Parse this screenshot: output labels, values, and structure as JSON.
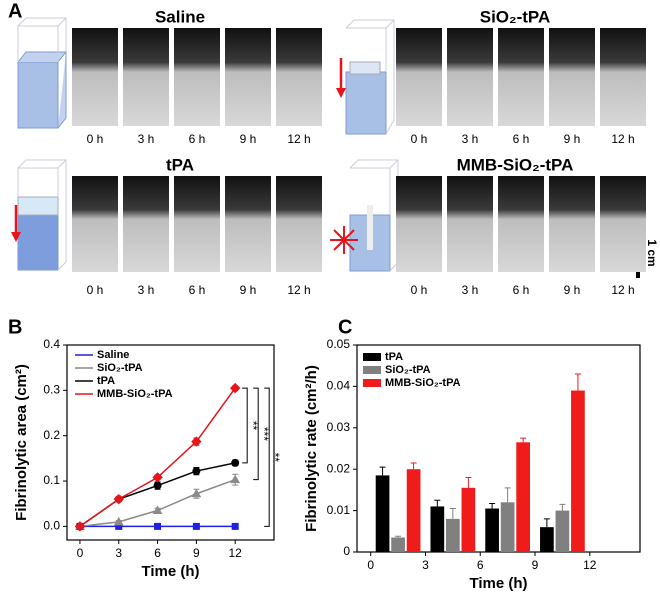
{
  "panel_a": {
    "label": "A",
    "groups": [
      {
        "title": "Saline",
        "times": [
          "0 h",
          "3 h",
          "6 h",
          "9 h",
          "12 h"
        ]
      },
      {
        "title": "SiO₂-tPA",
        "times": [
          "0 h",
          "3 h",
          "6 h",
          "9 h",
          "12 h"
        ]
      },
      {
        "title": "tPA",
        "times": [
          "0 h",
          "3 h",
          "6 h",
          "9 h",
          "12 h"
        ]
      },
      {
        "title": "MMB-SiO₂-tPA",
        "times": [
          "0 h",
          "3 h",
          "6 h",
          "9 h",
          "12 h"
        ]
      }
    ],
    "scale_bar": "1 cm"
  },
  "chart_data": [
    {
      "type": "line",
      "label": "B",
      "x_label": "Time (h)",
      "y_label": "Fibrinolytic area (cm²)",
      "x": [
        0,
        3,
        6,
        9,
        12
      ],
      "xlim": [
        -1,
        15
      ],
      "xticks": [
        0,
        3,
        6,
        9,
        12
      ],
      "ylim": [
        -0.03,
        0.4
      ],
      "yticks": [
        {
          "value": 0,
          "label": "0.0"
        },
        0.1,
        0.2,
        0.3,
        0.4
      ],
      "series": [
        {
          "name": "Saline",
          "color": "#1f1fe6",
          "marker": "square",
          "values": [
            0,
            0,
            0,
            0,
            0
          ],
          "errors": [
            0.002,
            0.002,
            0.002,
            0.002,
            0.002
          ]
        },
        {
          "name": "SiO₂-tPA",
          "color": "#8a8a8a",
          "marker": "triangle",
          "values": [
            0,
            0.01,
            0.035,
            0.072,
            0.103
          ],
          "errors": [
            0.002,
            0.003,
            0.005,
            0.01,
            0.012
          ]
        },
        {
          "name": "tPA",
          "color": "#000000",
          "marker": "circle",
          "values": [
            0,
            0.06,
            0.09,
            0.122,
            0.14
          ],
          "errors": [
            0.002,
            0.004,
            0.008,
            0.008,
            0.006
          ]
        },
        {
          "name": "MMB-SiO₂-tPA",
          "color": "#e8141b",
          "marker": "diamond",
          "values": [
            0,
            0.06,
            0.108,
            0.187,
            0.305
          ],
          "errors": [
            0.002,
            0.003,
            0.005,
            0.008,
            0.005
          ]
        }
      ],
      "significance": [
        {
          "from": 0.305,
          "to": 0.14,
          "label": "**"
        },
        {
          "from": 0.305,
          "to": 0.103,
          "label": "***"
        },
        {
          "from": 0.305,
          "to": 0,
          "label": "**"
        }
      ]
    },
    {
      "type": "bar",
      "label": "C",
      "x_label": "Time (h)",
      "y_label": "Fibrinolytic rate (cm²/h)",
      "x": [
        1.5,
        4.5,
        7.5,
        10.5
      ],
      "xlim": [
        -0.75,
        14.75
      ],
      "xticks": [
        0,
        3,
        6,
        9,
        12
      ],
      "ylim": [
        0,
        0.05
      ],
      "yticks": [
        0,
        0.01,
        0.02,
        0.03,
        0.04,
        0.05
      ],
      "series": [
        {
          "name": "tPA",
          "color": "#000000",
          "values": [
            0.0185,
            0.011,
            0.0105,
            0.006
          ],
          "errors": [
            0.002,
            0.0015,
            0.0012,
            0.002
          ]
        },
        {
          "name": "SiO₂-tPA",
          "color": "#808080",
          "values": [
            0.0035,
            0.008,
            0.012,
            0.01
          ],
          "errors": [
            0.0003,
            0.0025,
            0.0035,
            0.0015
          ]
        },
        {
          "name": "MMB-SiO₂-tPA",
          "color": "#f01c1c",
          "values": [
            0.02,
            0.0155,
            0.0265,
            0.039
          ],
          "errors": [
            0.0015,
            0.0025,
            0.001,
            0.004
          ]
        }
      ]
    }
  ]
}
